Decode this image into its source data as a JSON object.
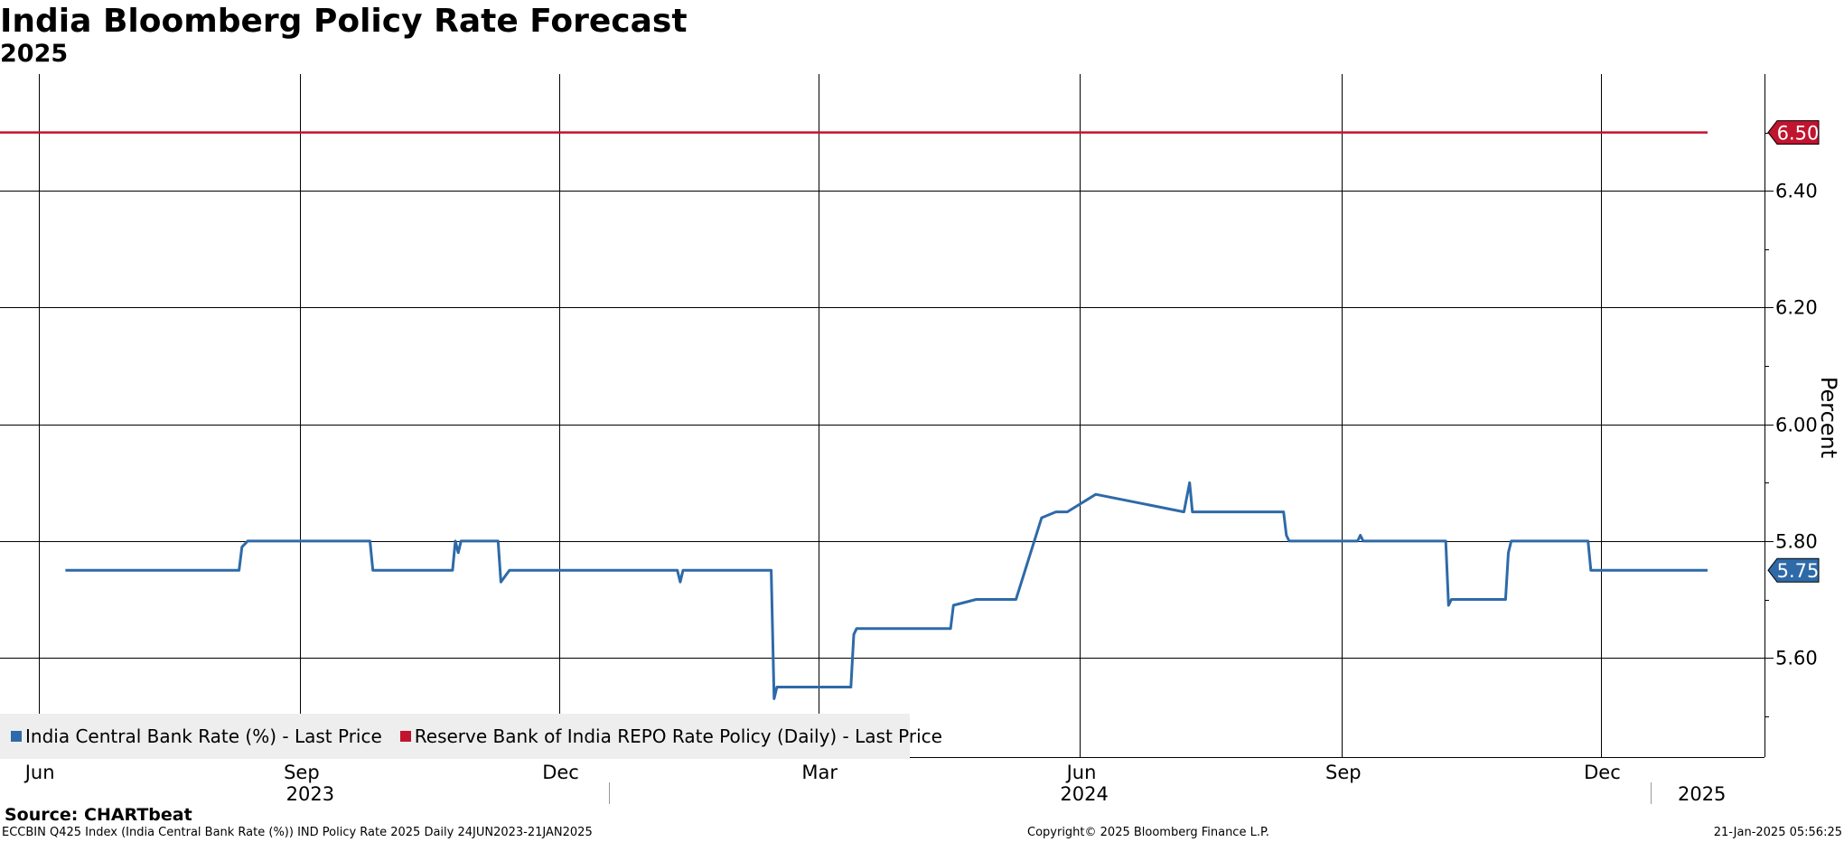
{
  "title": "India Bloomberg Policy Rate Forecast",
  "subtitle": "2025",
  "source": "Source: CHARTbeat",
  "footer": {
    "left": "ECCBIN Q425 Index (India Central Bank Rate (%)) IND Policy Rate 2025  Daily 24JUN2023-21JAN2025",
    "center": "Copyright© 2025 Bloomberg Finance L.P.",
    "right": "21-Jan-2025 05:56:25"
  },
  "colors": {
    "blue": "#2e6aa8",
    "red": "#c0142f",
    "grid": "#000000",
    "legend_bg": "#eeeeee"
  },
  "chart_data": {
    "type": "line",
    "title": "India Bloomberg Policy Rate Forecast",
    "subtitle": "2025",
    "ylabel": "Percent",
    "ylim": [
      5.43,
      6.6
    ],
    "xlim": [
      "2023-06-01",
      "2025-02-10"
    ],
    "y_ticks": [
      "5.60",
      "5.80",
      "6.00",
      "6.20",
      "6.40"
    ],
    "x_month_labels": [
      {
        "label": "Jun",
        "date": "2023-06-15"
      },
      {
        "label": "Sep",
        "date": "2023-09-15"
      },
      {
        "label": "Dec",
        "date": "2023-12-15"
      },
      {
        "label": "Mar",
        "date": "2024-03-15"
      },
      {
        "label": "Jun",
        "date": "2024-06-15"
      },
      {
        "label": "Sep",
        "date": "2024-09-15"
      },
      {
        "label": "Dec",
        "date": "2024-12-15"
      }
    ],
    "x_year_labels": [
      {
        "label": "2023",
        "date": "2023-09-18"
      },
      {
        "label": "2024",
        "date": "2024-06-16"
      },
      {
        "label": "2025",
        "date": "2025-01-19"
      }
    ],
    "year_boundaries": [
      "2024-01-01",
      "2025-01-01"
    ],
    "legend": [
      "India Central Bank Rate (%) - Last Price",
      "Reserve Bank of India REPO Rate Policy (Daily) - Last Price"
    ],
    "last_value_labels": [
      "6.50",
      "5.75"
    ],
    "series": [
      {
        "name": "India Central Bank Rate (%) - Last Price",
        "color": "#2e6aa8",
        "points": [
          [
            "2023-06-24",
            5.75
          ],
          [
            "2023-08-24",
            5.75
          ],
          [
            "2023-08-25",
            5.79
          ],
          [
            "2023-08-27",
            5.8
          ],
          [
            "2023-10-09",
            5.8
          ],
          [
            "2023-10-10",
            5.75
          ],
          [
            "2023-11-07",
            5.75
          ],
          [
            "2023-11-08",
            5.8
          ],
          [
            "2023-11-09",
            5.78
          ],
          [
            "2023-11-10",
            5.8
          ],
          [
            "2023-11-23",
            5.8
          ],
          [
            "2023-11-24",
            5.73
          ],
          [
            "2023-11-27",
            5.75
          ],
          [
            "2024-01-25",
            5.75
          ],
          [
            "2024-01-26",
            5.73
          ],
          [
            "2024-01-27",
            5.75
          ],
          [
            "2024-02-27",
            5.75
          ],
          [
            "2024-02-28",
            5.53
          ],
          [
            "2024-02-29",
            5.55
          ],
          [
            "2024-03-26",
            5.55
          ],
          [
            "2024-03-27",
            5.64
          ],
          [
            "2024-03-28",
            5.65
          ],
          [
            "2024-04-30",
            5.65
          ],
          [
            "2024-05-01",
            5.69
          ],
          [
            "2024-05-09",
            5.7
          ],
          [
            "2024-05-23",
            5.7
          ],
          [
            "2024-06-01",
            5.84
          ],
          [
            "2024-06-06",
            5.85
          ],
          [
            "2024-06-10",
            5.85
          ],
          [
            "2024-06-20",
            5.88
          ],
          [
            "2024-07-21",
            5.85
          ],
          [
            "2024-07-23",
            5.9
          ],
          [
            "2024-07-24",
            5.85
          ],
          [
            "2024-08-25",
            5.85
          ],
          [
            "2024-08-26",
            5.81
          ],
          [
            "2024-08-27",
            5.8
          ],
          [
            "2024-09-20",
            5.8
          ],
          [
            "2024-09-21",
            5.81
          ],
          [
            "2024-09-22",
            5.8
          ],
          [
            "2024-10-21",
            5.8
          ],
          [
            "2024-10-22",
            5.69
          ],
          [
            "2024-10-23",
            5.7
          ],
          [
            "2024-11-11",
            5.7
          ],
          [
            "2024-11-12",
            5.78
          ],
          [
            "2024-11-13",
            5.8
          ],
          [
            "2024-12-10",
            5.8
          ],
          [
            "2024-12-11",
            5.75
          ],
          [
            "2025-01-21",
            5.75
          ]
        ]
      },
      {
        "name": "Reserve Bank of India REPO Rate Policy (Daily) - Last Price",
        "color": "#c0142f",
        "points": [
          [
            "2023-06-01",
            6.5
          ],
          [
            "2025-01-21",
            6.5
          ]
        ]
      }
    ]
  }
}
